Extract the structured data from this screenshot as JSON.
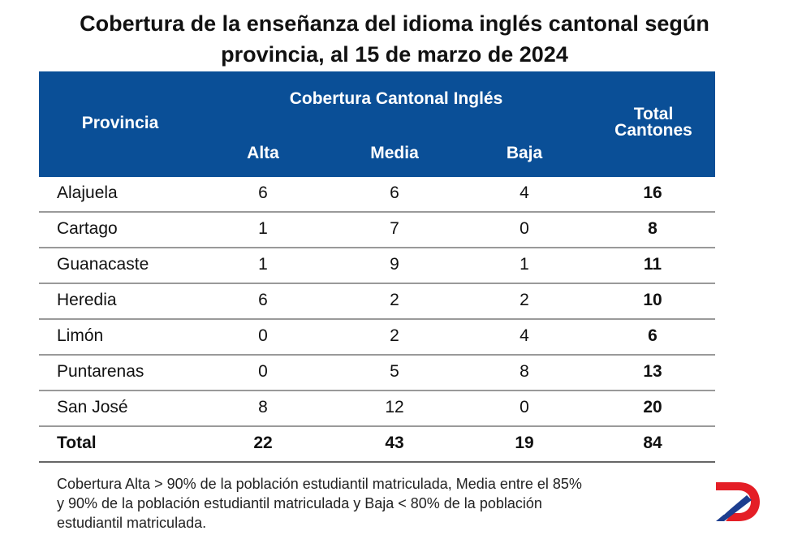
{
  "title": {
    "line1": "Cobertura de la enseñanza del idioma inglés cantonal según",
    "line2": "provincia, al 15 de marzo de 2024"
  },
  "header": {
    "provincia": "Provincia",
    "group": "Cobertura Cantonal Inglés",
    "alta": "Alta",
    "media": "Media",
    "baja": "Baja",
    "total_line1": "Total",
    "total_line2": "Cantones"
  },
  "rows": [
    {
      "provincia": "Alajuela",
      "alta": "6",
      "media": "6",
      "baja": "4",
      "total": "16"
    },
    {
      "provincia": "Cartago",
      "alta": "1",
      "media": "7",
      "baja": "0",
      "total": "8"
    },
    {
      "provincia": "Guanacaste",
      "alta": "1",
      "media": "9",
      "baja": "1",
      "total": "11"
    },
    {
      "provincia": "Heredia",
      "alta": "6",
      "media": "2",
      "baja": "2",
      "total": "10"
    },
    {
      "provincia": "Limón",
      "alta": "0",
      "media": "2",
      "baja": "4",
      "total": "6"
    },
    {
      "provincia": "Puntarenas",
      "alta": "0",
      "media": "5",
      "baja": "8",
      "total": "13"
    },
    {
      "provincia": "San José",
      "alta": "8",
      "media": "12",
      "baja": "0",
      "total": "20"
    }
  ],
  "total_row": {
    "provincia": "Total",
    "alta": "22",
    "media": "43",
    "baja": "19",
    "total": "84"
  },
  "note": {
    "line1": "Cobertura Alta > 90% de la población estudiantil matriculada, Media entre el 85%",
    "line2": "y 90% de la población estudiantil matriculada y Baja < 80% de la población",
    "line3": "estudiantil matriculada."
  },
  "logo": {
    "icon": "brand-logo-icon",
    "colors": {
      "red": "#e41e26",
      "blue": "#1d3e8f"
    }
  }
}
